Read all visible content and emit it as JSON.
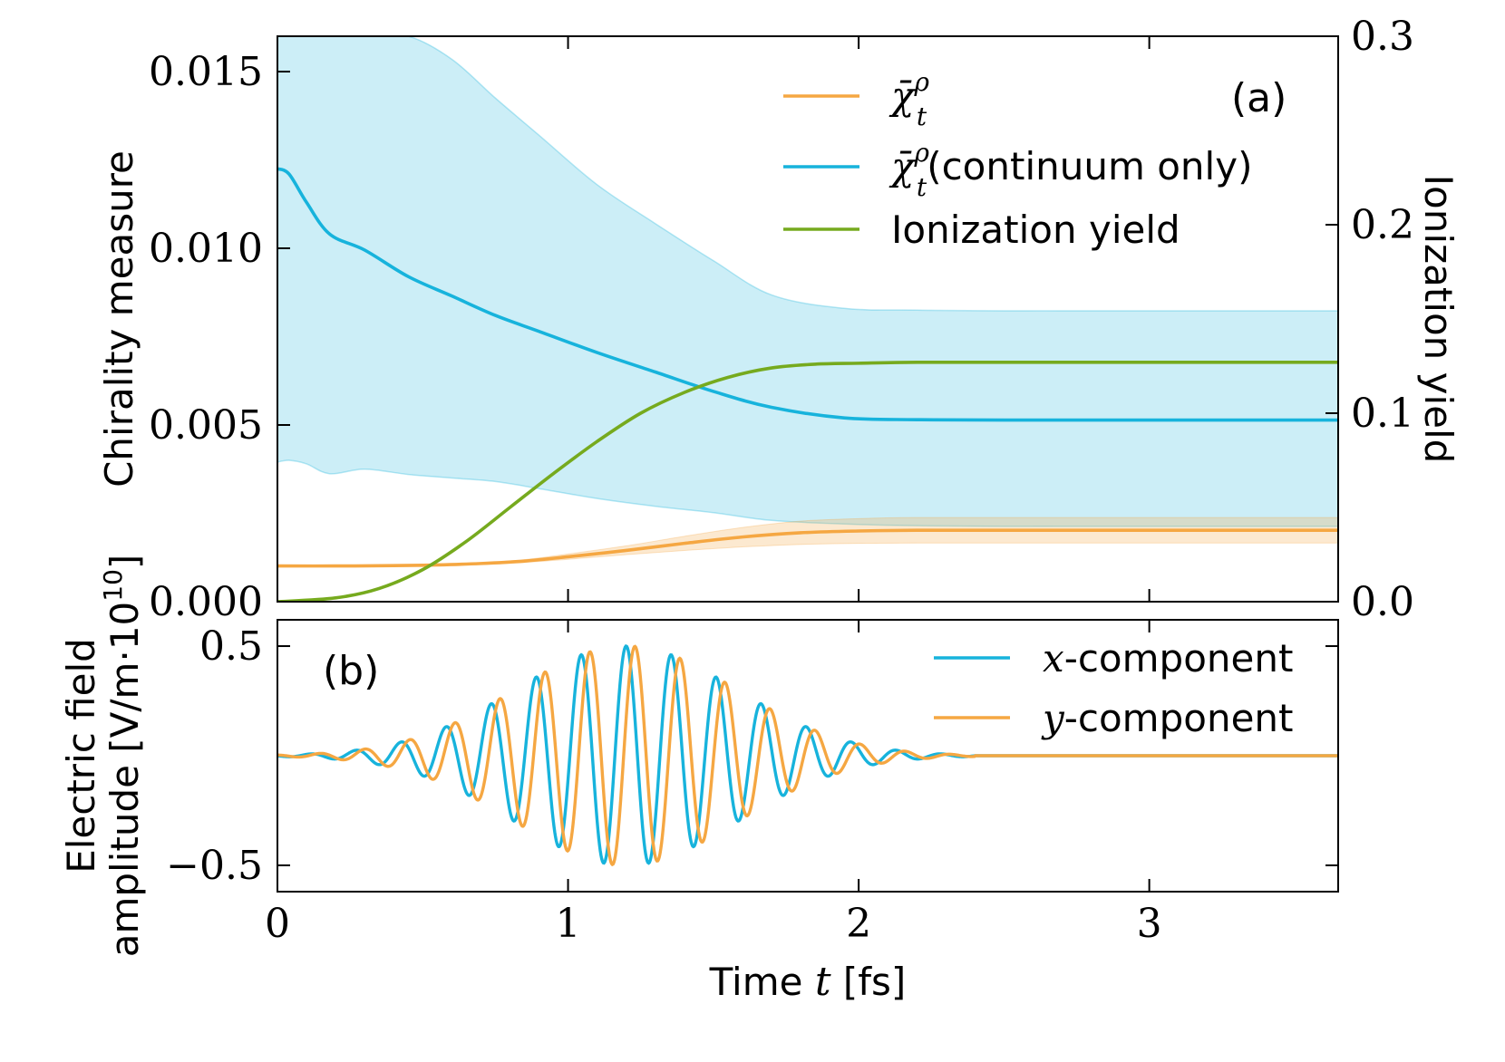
{
  "chart_data": [
    {
      "panel": "(a)",
      "type": "line",
      "xlabel_prefix": "Time",
      "xlabel_var": "t",
      "xlabel_unit": "[fs]",
      "xlim": [
        0,
        3.65
      ],
      "ylabel_left": "Chirality measure",
      "ylim_left": [
        0,
        0.016
      ],
      "yticks_left": [
        "0.000",
        "0.005",
        "0.010",
        "0.015"
      ],
      "ylabel_right": "Ionization yield",
      "ylim_right": [
        0,
        0.3
      ],
      "yticks_right": [
        "0.0",
        "0.1",
        "0.2",
        "0.3"
      ],
      "legend": {
        "position": "top-right",
        "entries": [
          {
            "symbol": "χ̄",
            "sup": "ρ",
            "sub": "t",
            "text": "",
            "color": "#f5a742"
          },
          {
            "symbol": "χ̄",
            "sup": "ρ",
            "sub": "t",
            "text": "(continuum only)",
            "color": "#17b3dc"
          },
          {
            "symbol": "",
            "sup": "",
            "sub": "",
            "text": "Ionization yield",
            "color": "#76aa1e"
          }
        ]
      },
      "series": [
        {
          "name": "chi_t_rho",
          "axis": "left",
          "color": "#f5a742",
          "x": [
            0,
            0.2,
            0.4,
            0.55,
            0.7,
            0.85,
            1.0,
            1.2,
            1.4,
            1.6,
            1.8,
            2.0,
            2.2,
            2.5,
            3.0,
            3.65
          ],
          "y": [
            0.00101,
            0.00101,
            0.00102,
            0.00104,
            0.00108,
            0.00115,
            0.00127,
            0.00145,
            0.00165,
            0.00183,
            0.00195,
            0.002,
            0.00202,
            0.00202,
            0.00202,
            0.00202
          ],
          "band_lower": [
            0.00101,
            0.00101,
            0.00102,
            0.00103,
            0.00106,
            0.00111,
            0.0012,
            0.00133,
            0.00145,
            0.00155,
            0.00162,
            0.00165,
            0.00166,
            0.00166,
            0.00166,
            0.00166
          ],
          "band_upper": [
            0.00101,
            0.00101,
            0.00102,
            0.00105,
            0.0011,
            0.00119,
            0.00135,
            0.00158,
            0.00185,
            0.0021,
            0.00228,
            0.00235,
            0.00238,
            0.00238,
            0.00238,
            0.00238
          ]
        },
        {
          "name": "chi_t_rho_continuum_only",
          "axis": "left",
          "color": "#17b3dc",
          "x": [
            0,
            0.04,
            0.1,
            0.18,
            0.3,
            0.45,
            0.6,
            0.75,
            0.9,
            1.1,
            1.3,
            1.5,
            1.7,
            1.95,
            2.2,
            2.5,
            3.0,
            3.65
          ],
          "y": [
            0.01225,
            0.0121,
            0.0113,
            0.0104,
            0.00995,
            0.0092,
            0.00865,
            0.0081,
            0.00765,
            0.00705,
            0.0065,
            0.00595,
            0.0055,
            0.0052,
            0.00515,
            0.00514,
            0.00514,
            0.00514
          ],
          "band_lower": [
            0.00395,
            0.004,
            0.0039,
            0.00362,
            0.00375,
            0.0036,
            0.0035,
            0.0034,
            0.0032,
            0.00292,
            0.0027,
            0.00252,
            0.0023,
            0.0022,
            0.00215,
            0.00213,
            0.00213,
            0.00213
          ],
          "band_upper": [
            0.016,
            0.016,
            0.016,
            0.016,
            0.016,
            0.016,
            0.01535,
            0.01425,
            0.0132,
            0.0118,
            0.0107,
            0.00965,
            0.00868,
            0.0083,
            0.00825,
            0.00823,
            0.00823,
            0.00823
          ]
        },
        {
          "name": "ionization_yield",
          "axis": "right",
          "color": "#76aa1e",
          "x": [
            0,
            0.2,
            0.35,
            0.5,
            0.65,
            0.8,
            0.95,
            1.1,
            1.25,
            1.4,
            1.55,
            1.7,
            1.85,
            2.0,
            2.2,
            2.5,
            3.0,
            3.65
          ],
          "y": [
            0,
            0.002,
            0.007,
            0.017,
            0.032,
            0.05,
            0.068,
            0.085,
            0.1,
            0.111,
            0.119,
            0.124,
            0.126,
            0.1265,
            0.127,
            0.127,
            0.127,
            0.127
          ]
        }
      ]
    },
    {
      "panel": "(b)",
      "type": "line",
      "xlim": [
        0,
        3.65
      ],
      "xticks": [
        "0",
        "1",
        "2",
        "3"
      ],
      "ylabel_line1": "Electric field",
      "ylabel_line2": "amplitude [V/m·10",
      "ylabel_exp": "10",
      "ylabel_close": "]",
      "ylim": [
        -0.62,
        0.62
      ],
      "yticks": [
        "0.5",
        "−0.5"
      ],
      "pulse": {
        "center": 1.2,
        "sigma": 0.38,
        "amplitude": 0.5,
        "period": 0.155,
        "end": 2.4
      },
      "legend": {
        "position": "top-right",
        "entries": [
          {
            "var": "x",
            "text": "-component",
            "color": "#17b3dc"
          },
          {
            "var": "y",
            "text": "-component",
            "color": "#f5a742"
          }
        ]
      },
      "series": [
        {
          "name": "x-component",
          "color": "#17b3dc",
          "phase": "cos"
        },
        {
          "name": "y-component",
          "color": "#f5a742",
          "phase": "sin"
        }
      ]
    }
  ]
}
